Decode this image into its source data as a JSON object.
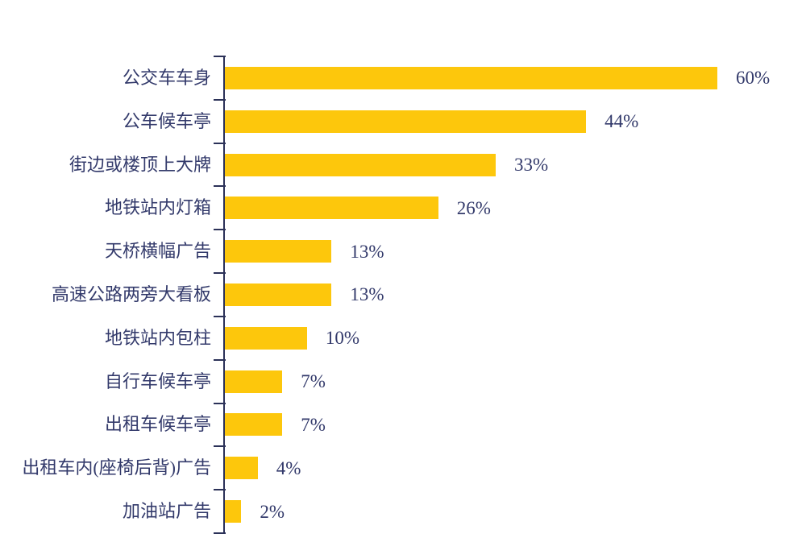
{
  "chart_data": {
    "type": "bar",
    "orientation": "horizontal",
    "title": "",
    "xlabel": "",
    "ylabel": "",
    "xlim": [
      0,
      60
    ],
    "grid": false,
    "legend": false,
    "categories": [
      "公交车车身",
      "公车候车亭",
      "街边或楼顶上大牌",
      "地铁站内灯箱",
      "天桥横幅广告",
      "高速公路两旁大看板",
      "地铁站内包柱",
      "自行车候车亭",
      "出租车候车亭",
      "出租车内(座椅后背)广告",
      "加油站广告"
    ],
    "values": [
      60,
      44,
      33,
      26,
      13,
      13,
      10,
      7,
      7,
      4,
      2
    ],
    "value_labels": [
      "60%",
      "44%",
      "33%",
      "26%",
      "13%",
      "13%",
      "10%",
      "7%",
      "7%",
      "4%",
      "2%"
    ],
    "colors": {
      "bar_fill": "#FDC70C",
      "text": "#333A6B",
      "axis": "#2B3158"
    }
  }
}
